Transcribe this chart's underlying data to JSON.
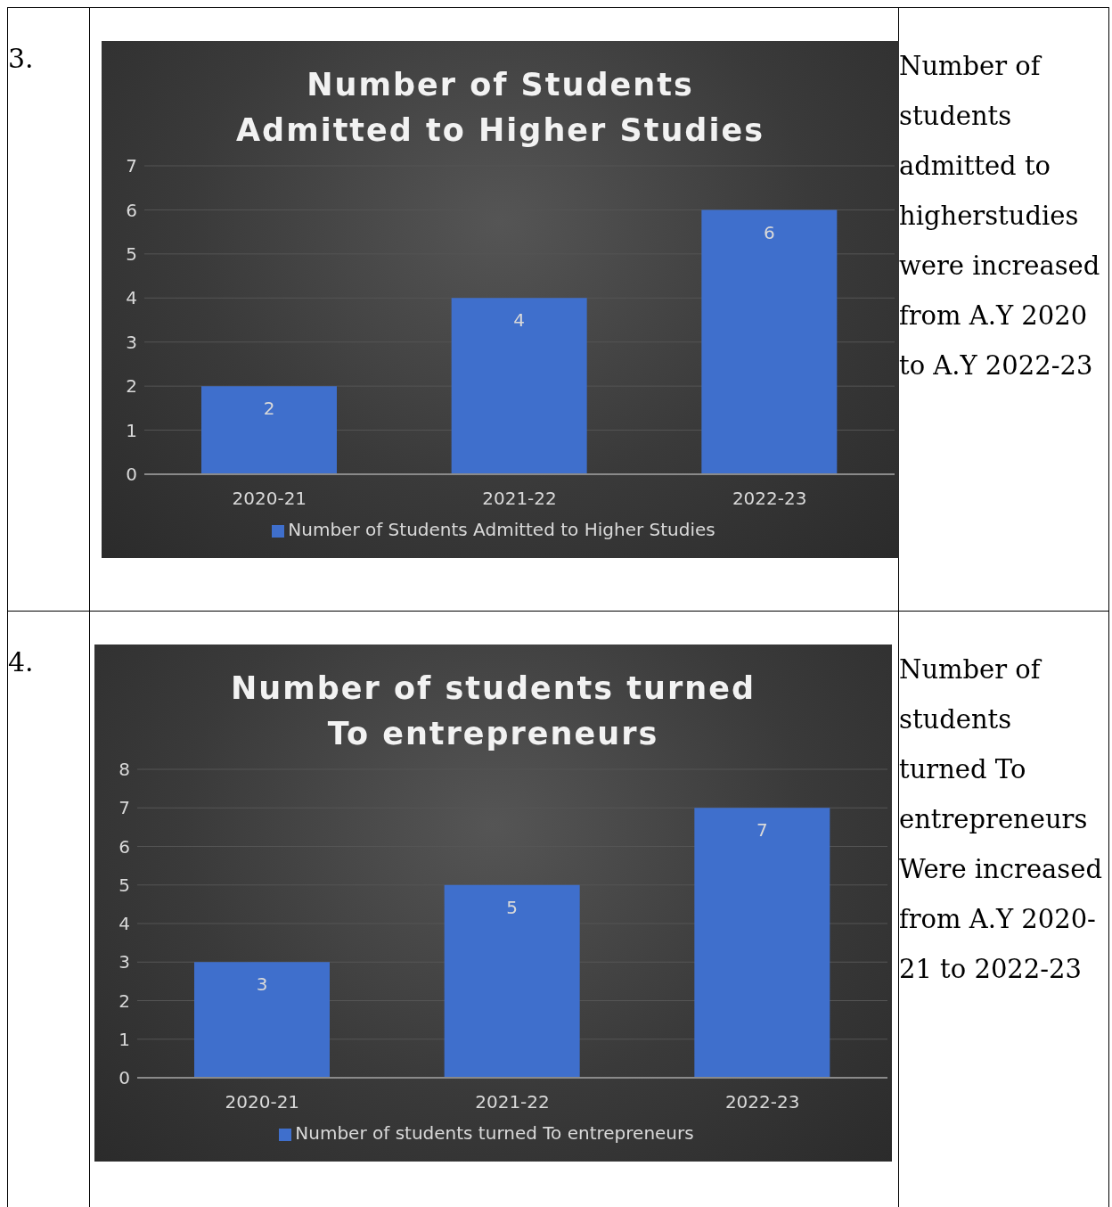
{
  "chart_data": [
    {
      "type": "bar",
      "title": "Number of Students Admitted to Higher Studies",
      "categories": [
        "2020-21",
        "2021-22",
        "2022-23"
      ],
      "series": [
        {
          "name": "Number of Students Admitted to Higher Studies",
          "color": "#3f6fcc",
          "values": [
            2,
            4,
            6
          ]
        }
      ],
      "ylim": [
        0,
        7
      ],
      "yticks": [
        0,
        1,
        2,
        3,
        4,
        5,
        6,
        7
      ],
      "grid": "y",
      "legend": "bottom",
      "data_labels": true,
      "annotations": [
        "3.",
        "Number of students admitted to higherstudies were increased from A.Y 2020 to A.Y 2022-23"
      ]
    },
    {
      "type": "bar",
      "title": "Number of students turned To entrepreneurs",
      "categories": [
        "2020-21",
        "2021-22",
        "2022-23"
      ],
      "series": [
        {
          "name": "Number of students turned To entrepreneurs",
          "color": "#3f6fcc",
          "values": [
            3,
            5,
            7
          ]
        }
      ],
      "ylim": [
        0,
        8
      ],
      "yticks": [
        0,
        1,
        2,
        3,
        4,
        5,
        6,
        7,
        8
      ],
      "grid": "y",
      "legend": "bottom",
      "data_labels": true,
      "annotations": [
        "4.",
        "Number of students turned To entrepreneurs Were increased from A.Y 2020-21 to 2022-23"
      ]
    }
  ]
}
